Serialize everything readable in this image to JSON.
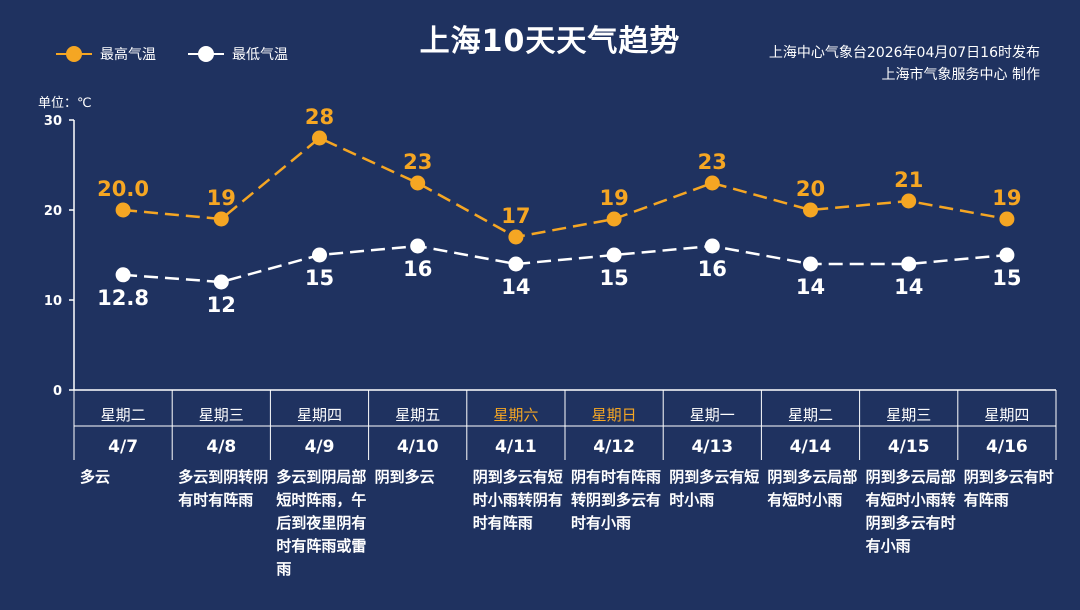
{
  "header": {
    "title": "上海10天天气趋势",
    "source_line1": "上海中心气象台2026年04月07日16时发布",
    "source_line2": "上海市气象服务中心  制作",
    "unit_label": "单位：℃"
  },
  "colors": {
    "background": "#1f3260",
    "high": "#f5a623",
    "low": "#ffffff",
    "weekend": "#f5a623",
    "grid": "#ffffff"
  },
  "chart_data": {
    "type": "line",
    "title": "上海10天天气趋势",
    "ylabel": "单位：℃",
    "ylim": [
      0,
      30
    ],
    "yticks": [
      0,
      10,
      20,
      30
    ],
    "categories": [
      "4/7",
      "4/8",
      "4/9",
      "4/10",
      "4/11",
      "4/12",
      "4/13",
      "4/14",
      "4/15",
      "4/16"
    ],
    "weekdays": [
      "星期二",
      "星期三",
      "星期四",
      "星期五",
      "星期六",
      "星期日",
      "星期一",
      "星期二",
      "星期三",
      "星期四"
    ],
    "weekend": [
      false,
      false,
      false,
      false,
      true,
      true,
      false,
      false,
      false,
      false
    ],
    "weather": [
      "多云",
      "多云到阴转阴有时有阵雨",
      "多云到阴局部短时阵雨，午后到夜里阴有时有阵雨或雷雨",
      "阴到多云",
      "阴到多云有短时小雨转阴有时有阵雨",
      "阴有时有阵雨转阴到多云有时有小雨",
      "阴到多云有短时小雨",
      "阴到多云局部有短时小雨",
      "阴到多云局部有短时小雨转阴到多云有时有小雨",
      "阴到多云有时有阵雨"
    ],
    "legend_position": "top-left",
    "series": [
      {
        "name": "最高气温",
        "values": [
          20,
          19,
          28,
          23,
          17,
          19,
          23,
          20,
          21,
          19
        ],
        "labels": [
          "20.0",
          "19",
          "28",
          "23",
          "17",
          "19",
          "23",
          "20",
          "21",
          "19"
        ]
      },
      {
        "name": "最低气温",
        "values": [
          12.8,
          12,
          15,
          16,
          14,
          15,
          16,
          14,
          14,
          15
        ],
        "labels": [
          "12.8",
          "12",
          "15",
          "16",
          "14",
          "15",
          "16",
          "14",
          "14",
          "15"
        ]
      }
    ]
  }
}
